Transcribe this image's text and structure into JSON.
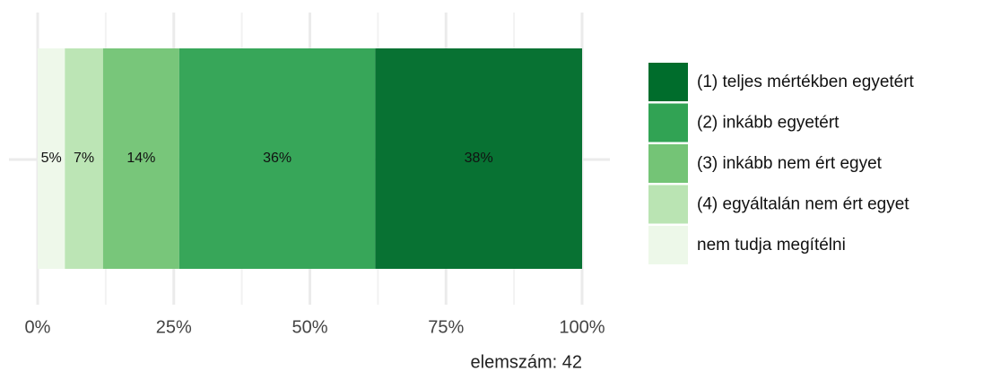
{
  "chart_data": {
    "type": "stacked_barh",
    "series": [
      {
        "name": "(1) teljes mértékben egyetért",
        "color": "#006d2c",
        "values": [
          38
        ],
        "value_labels": [
          "38%"
        ]
      },
      {
        "name": "(2) inkább egyetért",
        "color": "#31a354",
        "values": [
          36
        ],
        "value_labels": [
          "36%"
        ]
      },
      {
        "name": "(3) inkább nem ért egyet",
        "color": "#74c476",
        "values": [
          14
        ],
        "value_labels": [
          "14%"
        ]
      },
      {
        "name": "(4) egyáltalán nem ért egyet",
        "color": "#bae4b3",
        "values": [
          7
        ],
        "value_labels": [
          "7%"
        ]
      },
      {
        "name": "nem tudja megítélni",
        "color": "#edf8e9",
        "values": [
          5
        ],
        "value_labels": [
          "5%"
        ]
      }
    ],
    "xlim": [
      0,
      100
    ],
    "xticks": [
      {
        "value": 0,
        "label": "0%"
      },
      {
        "value": 25,
        "label": "25%"
      },
      {
        "value": 50,
        "label": "50%"
      },
      {
        "value": 75,
        "label": "75%"
      },
      {
        "value": 100,
        "label": "100%"
      }
    ],
    "minor_xticks": [
      12.5,
      37.5,
      62.5,
      87.5
    ],
    "grid": true,
    "legend": "right",
    "annotation": "elemszám: 42"
  }
}
